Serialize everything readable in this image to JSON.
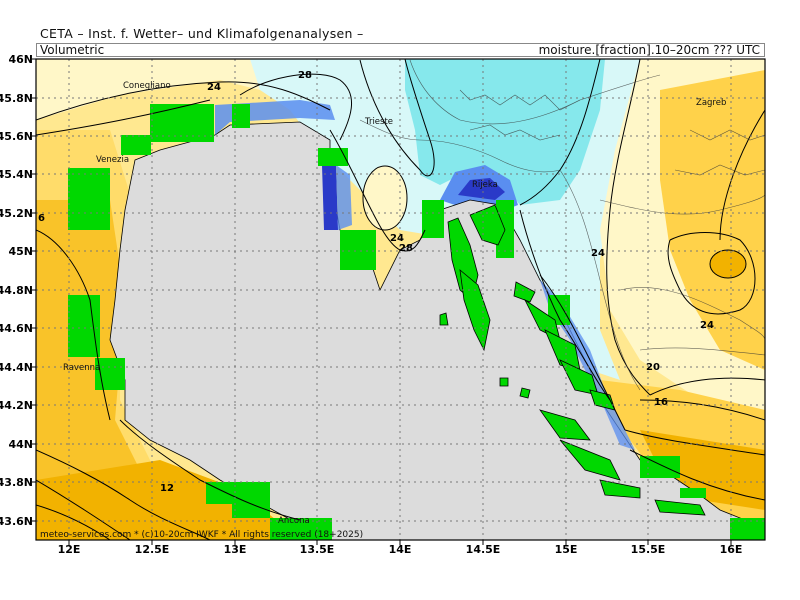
{
  "header": {
    "title": "CETA – Inst. f. Wetter– und Klimafolgenanalysen –",
    "left_label": "Volumetric",
    "right_label": "moisture.[fraction].10–20cm ??? UTC"
  },
  "map": {
    "lat_ticks": [
      "46N",
      "45.8N",
      "45.6N",
      "45.4N",
      "45.2N",
      "45N",
      "44.8N",
      "44.6N",
      "44.4N",
      "44.2N",
      "44N",
      "43.8N",
      "43.6N"
    ],
    "lon_ticks": [
      "12E",
      "12.5E",
      "13E",
      "13.5E",
      "14E",
      "14.5E",
      "15E",
      "15.5E",
      "16E"
    ],
    "cities": [
      "Conegliano",
      "Venezia",
      "Trieste",
      "Rijeka",
      "Zagreb",
      "Ravenna",
      "Ancona"
    ],
    "contour_labels": [
      "24",
      "28",
      "24",
      "28",
      "24",
      "24",
      "20",
      "16",
      "12",
      "6"
    ],
    "footer": "meteo-services.com * (c)10-20cm IWKF * All rights reserved (18+2025)"
  },
  "colors": {
    "sea": "#dcdcdc",
    "land_green": "#00d800",
    "dry_dark": "#f2b200",
    "dry_mid": "#ffd24a",
    "dry_light": "#ffe890",
    "dry_pale": "#fff7c8",
    "wet_pale": "#d8f8f8",
    "wet_light": "#a8eef0",
    "wet_mid": "#86e8ec",
    "wet_blue": "#5a8ef0",
    "wet_deep": "#2a3ac8"
  }
}
